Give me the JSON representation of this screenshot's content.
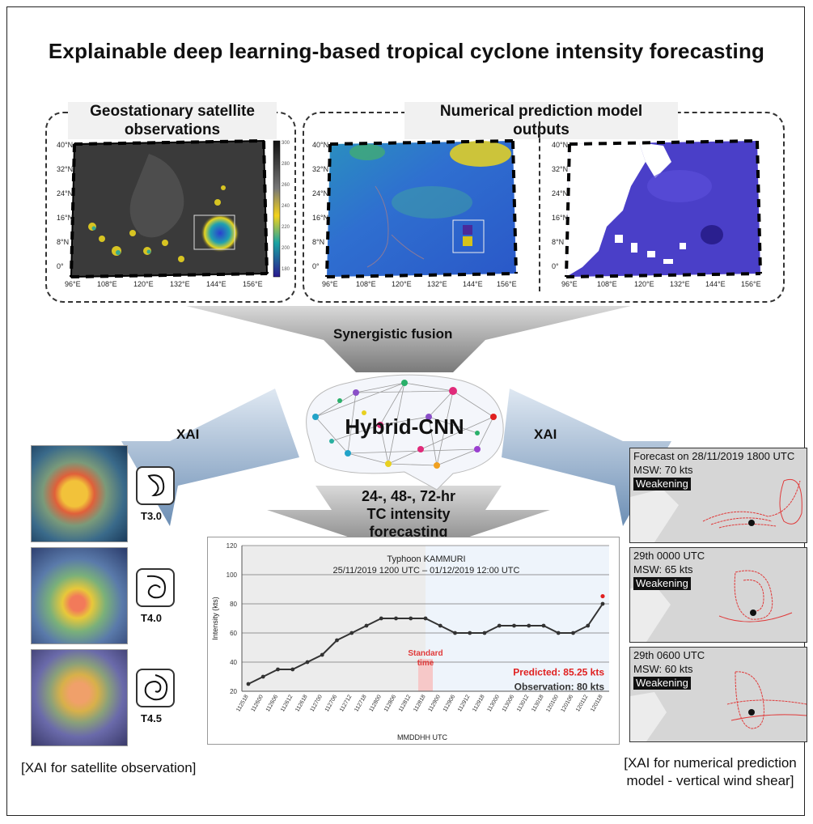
{
  "title": "Explainable deep learning-based tropical cyclone intensity forecasting",
  "satellite_panel": {
    "label_line1": "Geostationary satellite",
    "label_line2": "observations",
    "colorbar_ticks": [
      "300",
      "280",
      "260",
      "240",
      "220",
      "200",
      "180"
    ]
  },
  "model_panel": {
    "label_line1": "Numerical prediction model",
    "label_line2": "outputs"
  },
  "map_axis": {
    "lat": [
      "40°N",
      "32°N",
      "24°N",
      "16°N",
      "8°N",
      "0°"
    ],
    "lon": [
      "96°E",
      "108°E",
      "120°E",
      "132°E",
      "144°E",
      "156°E"
    ]
  },
  "fusion_label": "Synergistic fusion",
  "network_label": "Hybrid-CNN",
  "xai_left": "XAI",
  "xai_right": "XAI",
  "forecast_label_line1": "24-, 48-, 72-hr",
  "forecast_label_line2": "TC intensity",
  "forecast_label_line3": "forecasting",
  "dvorak": [
    {
      "label": "T3.0"
    },
    {
      "label": "T4.0"
    },
    {
      "label": "T4.5"
    }
  ],
  "caption_left": "[XAI for satellite observation]",
  "caption_right_line1": "[XAI for numerical prediction",
  "caption_right_line2": "model - vertical wind shear]",
  "shear_panels": [
    {
      "line1": "Forecast on 28/11/2019 1800 UTC",
      "line2": "MSW: 70 kts",
      "badge": "Weakening"
    },
    {
      "line1": "29th 0000 UTC",
      "line2": "MSW: 65 kts",
      "badge": "Weakening"
    },
    {
      "line1": "29th 0600 UTC",
      "line2": "MSW: 60 kts",
      "badge": "Weakening"
    }
  ],
  "chart_data": {
    "type": "line",
    "title": "Typhoon KAMMURI",
    "subtitle": "25/11/2019 1200 UTC – 01/12/2019 12:00 UTC",
    "xlabel": "MMDDHH UTC",
    "ylabel": "Intensity (kts)",
    "ylim": [
      20,
      120
    ],
    "yticks": [
      20,
      40,
      60,
      80,
      100,
      120
    ],
    "grid": true,
    "categories": [
      "112518",
      "112600",
      "112606",
      "112612",
      "112618",
      "112700",
      "112706",
      "112712",
      "112718",
      "112800",
      "112806",
      "112812",
      "112818",
      "112900",
      "112906",
      "112912",
      "112918",
      "113000",
      "113006",
      "113012",
      "113018",
      "120100",
      "120106",
      "120112",
      "120118"
    ],
    "series": [
      {
        "values": [
          25,
          30,
          35,
          35,
          40,
          45,
          55,
          60,
          65,
          70,
          70,
          70,
          70,
          65,
          60,
          60,
          60,
          65,
          65,
          65,
          65,
          60,
          60,
          65,
          80
        ]
      }
    ],
    "predicted_point": {
      "x": "120118",
      "y": 85.25
    },
    "standard_time": "112818",
    "standard_time_label_line1": "Standard",
    "standard_time_label_line2": "time",
    "predicted_label": "Predicted: 85.25 kts",
    "observation_label": "Observation: 80 kts",
    "colors": {
      "line": "#333333",
      "predicted": "#e02020",
      "forecast_bg": "#eef4fb",
      "past_bg": "#ececec"
    }
  }
}
